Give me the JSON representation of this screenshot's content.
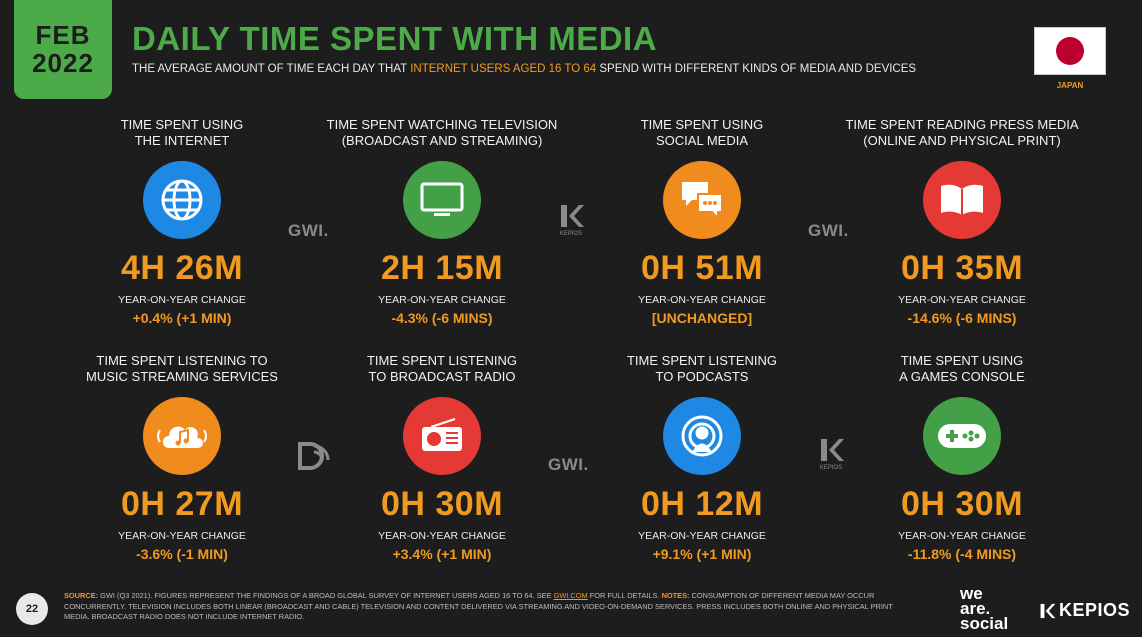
{
  "badge": {
    "month": "FEB",
    "year": "2022"
  },
  "header": {
    "title": "DAILY TIME SPENT WITH MEDIA",
    "subtitle_pre": "THE AVERAGE AMOUNT OF TIME EACH DAY THAT ",
    "subtitle_highlight": "INTERNET USERS AGED 16 TO 64",
    "subtitle_post": " SPEND WITH DIFFERENT KINDS OF MEDIA AND DEVICES"
  },
  "country": {
    "label": "JAPAN"
  },
  "cards": [
    {
      "label1": "TIME SPENT USING",
      "label2": "THE INTERNET",
      "value": "4H 26M",
      "yoy_label": "YEAR-ON-YEAR CHANGE",
      "yoy_value": "+0.4% (+1 MIN)",
      "icon": "globe-icon",
      "color": "#1e88e5"
    },
    {
      "label1": "TIME SPENT WATCHING TELEVISION",
      "label2": "(BROADCAST AND STREAMING)",
      "value": "2H 15M",
      "yoy_label": "YEAR-ON-YEAR CHANGE",
      "yoy_value": "-4.3% (-6 MINS)",
      "icon": "television-icon",
      "color": "#43a047"
    },
    {
      "label1": "TIME SPENT USING",
      "label2": "SOCIAL MEDIA",
      "value": "0H 51M",
      "yoy_label": "YEAR-ON-YEAR CHANGE",
      "yoy_value": "[UNCHANGED]",
      "icon": "chat-bubbles-icon",
      "color": "#f08c1e"
    },
    {
      "label1": "TIME SPENT READING PRESS MEDIA",
      "label2": "(ONLINE AND PHYSICAL PRINT)",
      "value": "0H 35M",
      "yoy_label": "YEAR-ON-YEAR CHANGE",
      "yoy_value": "-14.6% (-6 MINS)",
      "icon": "open-book-icon",
      "color": "#e53935"
    },
    {
      "label1": "TIME SPENT LISTENING TO",
      "label2": "MUSIC STREAMING SERVICES",
      "value": "0H 27M",
      "yoy_label": "YEAR-ON-YEAR CHANGE",
      "yoy_value": "-3.6% (-1 MIN)",
      "icon": "music-cloud-icon",
      "color": "#f08c1e"
    },
    {
      "label1": "TIME SPENT LISTENING",
      "label2": "TO BROADCAST RADIO",
      "value": "0H 30M",
      "yoy_label": "YEAR-ON-YEAR CHANGE",
      "yoy_value": "+3.4% (+1 MIN)",
      "icon": "radio-icon",
      "color": "#e53935"
    },
    {
      "label1": "TIME SPENT LISTENING",
      "label2": "TO PODCASTS",
      "value": "0H 12M",
      "yoy_label": "YEAR-ON-YEAR CHANGE",
      "yoy_value": "+9.1% (+1 MIN)",
      "icon": "podcast-icon",
      "color": "#1e88e5"
    },
    {
      "label1": "TIME SPENT USING",
      "label2": "A GAMES CONSOLE",
      "value": "0H 30M",
      "yoy_label": "YEAR-ON-YEAR CHANGE",
      "yoy_value": "-11.8% (-4 MINS)",
      "icon": "gamepad-icon",
      "color": "#43a047"
    }
  ],
  "watermarks": {
    "gwi": "GWI.",
    "kepios_small": "KEPIOS"
  },
  "footer": {
    "page_number": "22",
    "source_label": "SOURCE:",
    "source_text": " GWI (Q3 2021). FIGURES REPRESENT THE FINDINGS OF A BROAD GLOBAL SURVEY OF INTERNET USERS AGED 16 TO 64. SEE ",
    "source_link": "GWI.COM",
    "source_text2": " FOR FULL DETAILS. ",
    "notes_label": "NOTES:",
    "notes_text": " CONSUMPTION OF DIFFERENT MEDIA MAY OCCUR CONCURRENTLY. TELEVISION INCLUDES BOTH LINEAR (BROADCAST AND CABLE) TELEVISION AND CONTENT DELIVERED VIA STREAMING AND VIDEO-ON-DEMAND SERVICES. PRESS INCLUDES BOTH ONLINE AND PHYSICAL PRINT MEDIA. BROADCAST RADIO DOES NOT INCLUDE INTERNET RADIO.",
    "brand1_line1": "we",
    "brand1_line2": "are.",
    "brand1_line3": "social",
    "brand2": "KEPIOS"
  }
}
